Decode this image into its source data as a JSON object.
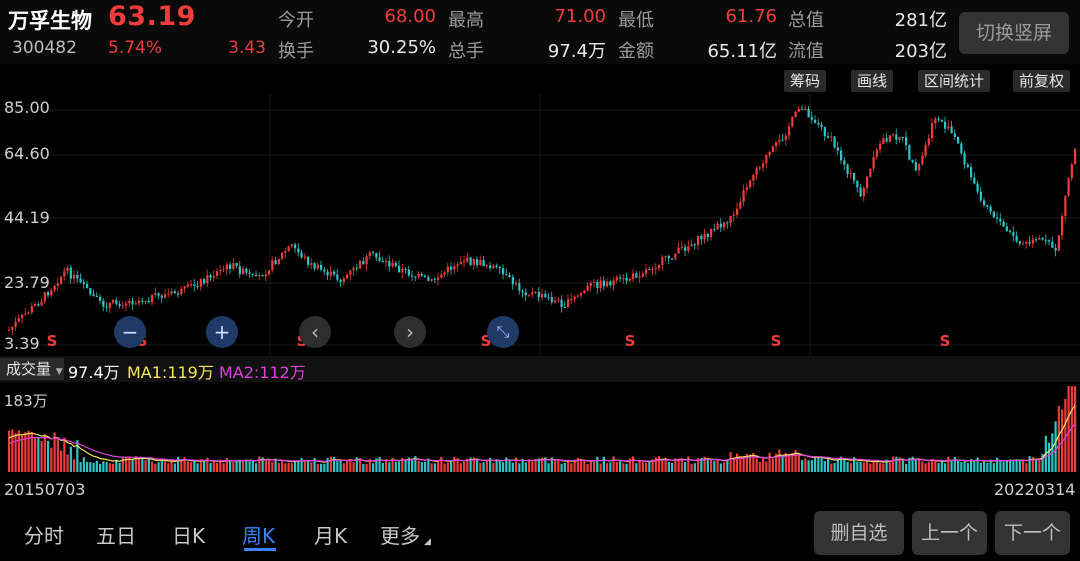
{
  "header": {
    "name": "万孚生物",
    "price": "63.19",
    "code": "300482",
    "change_pct": "5.74%",
    "change_amt": "3.43",
    "stats": [
      {
        "label": "今开",
        "value": "68.00",
        "color": "red"
      },
      {
        "label": "最高",
        "value": "71.00",
        "color": "red"
      },
      {
        "label": "最低",
        "value": "61.76",
        "color": "red"
      },
      {
        "label": "总值",
        "value": "281亿",
        "color": "white"
      },
      {
        "label": "换手",
        "value": "30.25%",
        "color": "white"
      },
      {
        "label": "总手",
        "value": "97.4万",
        "color": "white"
      },
      {
        "label": "金额",
        "value": "65.11亿",
        "color": "white"
      },
      {
        "label": "流值",
        "value": "203亿",
        "color": "white"
      }
    ],
    "switch_label": "切换竖屏"
  },
  "tools": [
    "筹码",
    "画线",
    "区间统计",
    "前复权"
  ],
  "kline": {
    "y_ticks": [
      "85.00",
      "64.60",
      "44.19",
      "23.79",
      "3.39"
    ],
    "s_marker": "S",
    "controls": {
      "zoom_out": "−",
      "zoom_in": "+",
      "prev": "‹",
      "next": "›",
      "fit": "⤡"
    }
  },
  "volume": {
    "selector": "成交量",
    "current": "97.4万",
    "ma1": "MA1:119万",
    "ma2": "MA2:112万",
    "max_label": "183万"
  },
  "dates": {
    "start": "20150703",
    "end": "20220314"
  },
  "tabs": [
    "分时",
    "五日",
    "日K",
    "周K",
    "月K",
    "更多"
  ],
  "active_tab": "周K",
  "actions": {
    "remove": "删自选",
    "prev": "上一个",
    "next": "下一个"
  },
  "colors": {
    "up": "#f03c3c",
    "down": "#2ec6c6",
    "ma1": "#f5e663",
    "ma2": "#e040e0",
    "active_tab": "#3b82f6"
  }
}
